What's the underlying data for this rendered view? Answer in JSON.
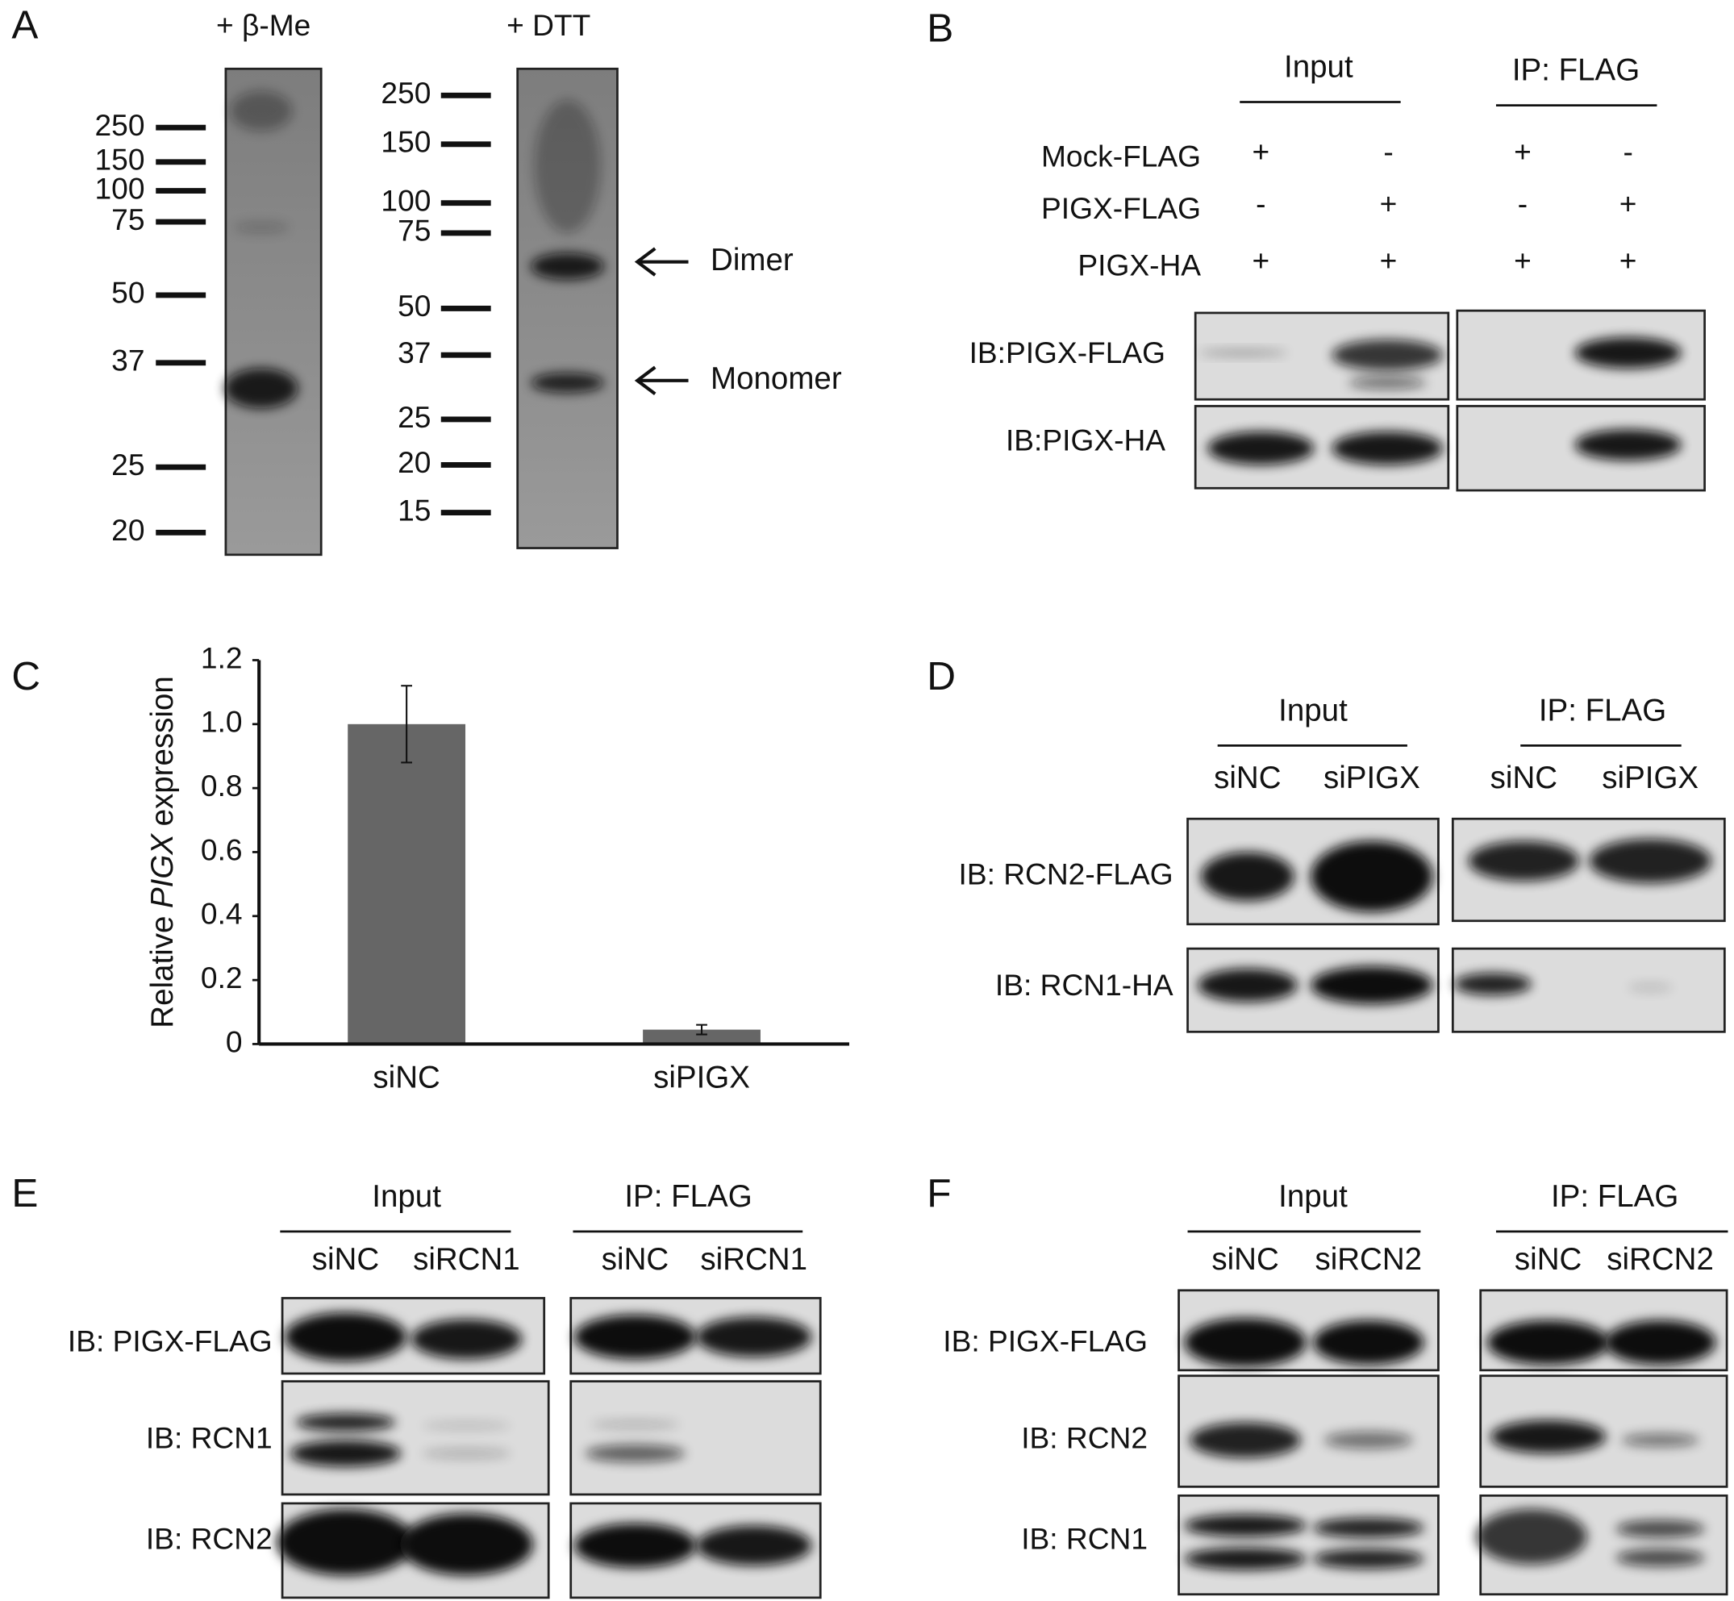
{
  "panels": {
    "A": {
      "letter": "A",
      "gels": [
        {
          "label": "+ β-Me",
          "markers": [
            "250",
            "150",
            "100",
            "75",
            "50",
            "37",
            "25",
            "20"
          ]
        },
        {
          "label": "+ DTT",
          "markers": [
            "250",
            "150",
            "100",
            "75",
            "50",
            "37",
            "25",
            "20",
            "15"
          ]
        }
      ],
      "arrows": [
        "Dimer",
        "Monomer"
      ]
    },
    "B": {
      "letter": "B",
      "groups": [
        "Input",
        "IP: FLAG"
      ],
      "conditions": [
        {
          "label": "Mock-FLAG",
          "signs": [
            "+",
            "-",
            "+",
            "-"
          ]
        },
        {
          "label": "PIGX-FLAG",
          "signs": [
            "-",
            "+",
            "-",
            "+"
          ]
        },
        {
          "label": "PIGX-HA",
          "signs": [
            "+",
            "+",
            "+",
            "+"
          ]
        }
      ],
      "blots": [
        "IB:PIGX-FLAG",
        "IB:PIGX-HA"
      ]
    },
    "C": {
      "letter": "C"
    },
    "D": {
      "letter": "D",
      "groups": [
        "Input",
        "IP: FLAG"
      ],
      "lanes": [
        "siNC",
        "siPIGX",
        "siNC",
        "siPIGX"
      ],
      "blots": [
        "IB: RCN2-FLAG",
        "IB: RCN1-HA"
      ]
    },
    "E": {
      "letter": "E",
      "groups": [
        "Input",
        "IP: FLAG"
      ],
      "lanes": [
        "siNC",
        "siRCN1",
        "siNC",
        "siRCN1"
      ],
      "blots": [
        "IB: PIGX-FLAG",
        "IB: RCN1",
        "IB: RCN2"
      ]
    },
    "F": {
      "letter": "F",
      "groups": [
        "Input",
        "IP: FLAG"
      ],
      "lanes": [
        "siNC",
        "siRCN2",
        "siNC",
        "siRCN2"
      ],
      "blots": [
        "IB: PIGX-FLAG",
        "IB: RCN2",
        "IB: RCN1"
      ]
    }
  },
  "chart_data": {
    "type": "bar",
    "categories": [
      "siNC",
      "siPIGX"
    ],
    "values": [
      1.0,
      0.045
    ],
    "errors": [
      0.12,
      0.015
    ],
    "color": "#666666",
    "ylim": [
      0,
      1.2
    ],
    "yticks": [
      0,
      0.2,
      0.4,
      0.6,
      0.8,
      {
        "value": 1,
        "label": "1.0"
      },
      1.2
    ],
    "ylabel": [
      "Relative",
      "PIGX",
      "expression"
    ]
  }
}
